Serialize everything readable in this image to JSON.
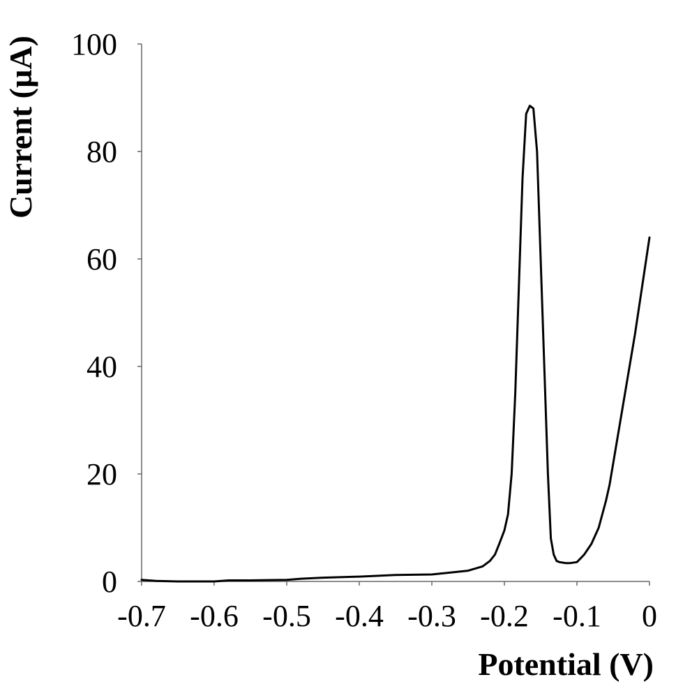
{
  "chart_data": {
    "type": "line",
    "title": "",
    "xlabel": "Potential (V)",
    "ylabel": "Current (µA)",
    "xlim": [
      -0.7,
      0
    ],
    "ylim": [
      0,
      100
    ],
    "xticks": [
      -0.7,
      -0.6,
      -0.5,
      -0.4,
      -0.3,
      -0.2,
      -0.1,
      0
    ],
    "xtick_labels": [
      "-0.7",
      "-0.6",
      "-0.5",
      "-0.4",
      "-0.3",
      "-0.2",
      "-0.1",
      "0"
    ],
    "yticks": [
      0,
      20,
      40,
      60,
      80,
      100
    ],
    "ytick_labels": [
      "0",
      "20",
      "40",
      "60",
      "80",
      "100"
    ],
    "grid": false,
    "legend": "none",
    "line_color": "#000000",
    "series": [
      {
        "x": [
          -0.7,
          -0.68,
          -0.65,
          -0.6,
          -0.58,
          -0.55,
          -0.5,
          -0.48,
          -0.45,
          -0.4,
          -0.35,
          -0.3,
          -0.25,
          -0.23,
          -0.22,
          -0.213,
          -0.207,
          -0.2,
          -0.195,
          -0.19,
          -0.185,
          -0.18,
          -0.175,
          -0.17,
          -0.165,
          -0.16,
          -0.155,
          -0.15,
          -0.145,
          -0.14,
          -0.136,
          -0.132,
          -0.128,
          -0.124,
          -0.12,
          -0.115,
          -0.11,
          -0.1,
          -0.095,
          -0.09,
          -0.08,
          -0.07,
          -0.06,
          -0.055,
          -0.05,
          -0.04,
          -0.03,
          -0.02,
          -0.01,
          0
        ],
        "y": [
          0.3,
          0.1,
          0.0,
          0.0,
          0.2,
          0.2,
          0.3,
          0.5,
          0.7,
          0.9,
          1.2,
          1.3,
          2.0,
          2.8,
          3.8,
          5.0,
          7.0,
          9.5,
          12.5,
          20,
          35,
          55,
          75,
          87,
          88.5,
          88,
          80,
          60,
          40,
          20,
          8,
          5,
          3.8,
          3.6,
          3.5,
          3.4,
          3.4,
          3.6,
          4.3,
          5.0,
          7.0,
          10,
          15,
          18,
          22,
          30,
          38,
          46,
          55,
          64
        ]
      }
    ]
  }
}
